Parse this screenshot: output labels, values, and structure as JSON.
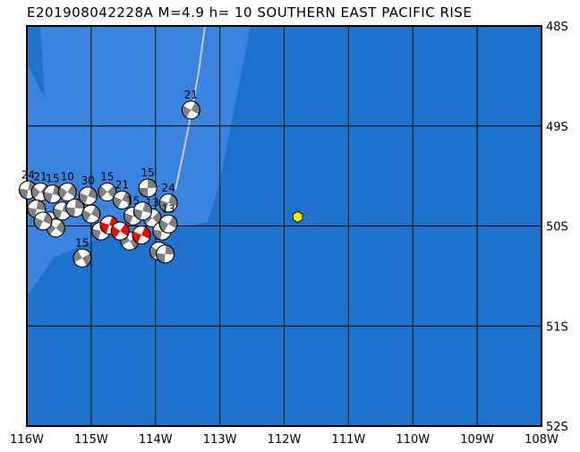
{
  "title": "E201908042228A M=4.9 h= 10 SOUTHERN EAST PACIFIC RISE",
  "map": {
    "lon_range": [
      -116,
      -108
    ],
    "lat_range": [
      -52,
      -48
    ],
    "lon_ticks": [
      "116W",
      "115W",
      "114W",
      "113W",
      "112W",
      "111W",
      "110W",
      "109W",
      "108W"
    ],
    "lat_ticks": [
      "48S",
      "49S",
      "50S",
      "51S",
      "52S"
    ],
    "colors": {
      "deep": "#1e72cc",
      "ridge": "#3a84de",
      "grid": "#000000",
      "fracture": "#c8c8f0",
      "mechanism": "#808080",
      "highlight_mechanism": "#ff0000",
      "epicenter": "#ffee00"
    },
    "epicenter": {
      "lon": -111.79,
      "lat": -49.91
    },
    "events": [
      {
        "lon": -113.45,
        "lat": -48.84,
        "depth": "21",
        "rot": 30
      },
      {
        "lon": -114.12,
        "lat": -49.62,
        "depth": "15",
        "rot": 0
      },
      {
        "lon": -113.8,
        "lat": -49.77,
        "depth": "24",
        "rot": 20
      },
      {
        "lon": -115.14,
        "lat": -50.32,
        "depth": "15",
        "rot": 60
      },
      {
        "lon": -115.98,
        "lat": -49.64,
        "depth": "24",
        "rot": 10
      },
      {
        "lon": -115.79,
        "lat": -49.66,
        "depth": "21",
        "rot": 40
      },
      {
        "lon": -115.6,
        "lat": -49.68,
        "depth": "15",
        "rot": 15
      },
      {
        "lon": -115.37,
        "lat": -49.66,
        "depth": "10",
        "rot": 35
      },
      {
        "lon": -115.05,
        "lat": -49.7,
        "depth": "30",
        "rot": 20
      },
      {
        "lon": -114.75,
        "lat": -49.66,
        "depth": "15",
        "rot": 45
      },
      {
        "lon": -114.52,
        "lat": -49.74,
        "depth": "21",
        "rot": 25
      },
      {
        "lon": -115.85,
        "lat": -49.83,
        "depth": "",
        "rot": 10
      },
      {
        "lon": -115.65,
        "lat": -49.95,
        "depth": "",
        "rot": 50
      },
      {
        "lon": -115.45,
        "lat": -49.85,
        "depth": "",
        "rot": 20
      },
      {
        "lon": -115.25,
        "lat": -49.82,
        "depth": "",
        "rot": 5
      },
      {
        "lon": -115.0,
        "lat": -49.88,
        "depth": "",
        "rot": 30
      },
      {
        "lon": -114.85,
        "lat": -50.05,
        "depth": "",
        "rot": 15
      },
      {
        "lon": -114.4,
        "lat": -50.15,
        "depth": "",
        "rot": 60
      },
      {
        "lon": -114.35,
        "lat": -49.9,
        "depth": "15",
        "rot": 20
      },
      {
        "lon": -114.05,
        "lat": -49.92,
        "depth": "13",
        "rot": 45
      },
      {
        "lon": -113.9,
        "lat": -50.05,
        "depth": "",
        "rot": 10
      },
      {
        "lon": -113.95,
        "lat": -50.25,
        "depth": "",
        "rot": 35
      },
      {
        "lon": -113.85,
        "lat": -50.28,
        "depth": "",
        "rot": 5
      },
      {
        "lon": -115.55,
        "lat": -50.02,
        "depth": "",
        "rot": 40
      },
      {
        "lon": -115.75,
        "lat": -49.95,
        "depth": "",
        "rot": 25
      },
      {
        "lon": -114.2,
        "lat": -49.85,
        "depth": "",
        "rot": 15
      },
      {
        "lon": -113.8,
        "lat": -49.98,
        "depth": "13",
        "rot": 30
      },
      {
        "lon": -114.72,
        "lat": -49.99,
        "depth": "",
        "rot": 20,
        "highlight": true
      },
      {
        "lon": -114.55,
        "lat": -50.05,
        "depth": "",
        "rot": 35,
        "highlight": true
      },
      {
        "lon": -114.22,
        "lat": -50.09,
        "depth": "",
        "rot": 25,
        "highlight": true
      }
    ]
  }
}
